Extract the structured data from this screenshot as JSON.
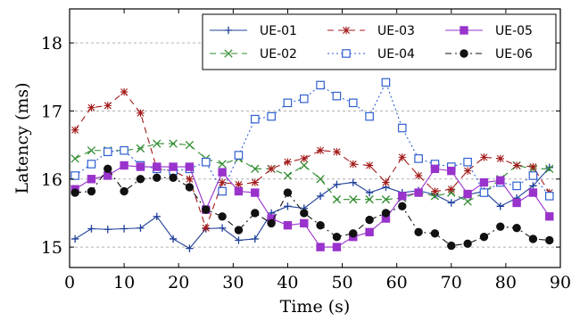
{
  "chart_data": {
    "type": "line",
    "title": "",
    "xlabel": "Time (s)",
    "ylabel": "Latency (ms)",
    "xlim": [
      0,
      90
    ],
    "ylim": [
      14.7,
      18.5
    ],
    "xticks": [
      0,
      10,
      20,
      30,
      40,
      50,
      60,
      70,
      80,
      90
    ],
    "yticks": [
      15,
      16,
      17,
      18
    ],
    "grid": "horizontal dotted at y ticks",
    "legend_placement": "top-right",
    "x": [
      1,
      4,
      7,
      10,
      13,
      16,
      19,
      22,
      25,
      28,
      31,
      34,
      37,
      40,
      43,
      46,
      49,
      52,
      55,
      58,
      61,
      64,
      67,
      70,
      73,
      76,
      79,
      82,
      85,
      88
    ],
    "series": [
      {
        "name": "UE-01",
        "color": "#1f3f99",
        "dash": "",
        "marker": "plus",
        "values": [
          15.12,
          15.27,
          15.26,
          15.27,
          15.28,
          15.45,
          15.12,
          14.98,
          15.27,
          15.28,
          15.1,
          15.12,
          15.5,
          15.6,
          15.57,
          15.75,
          15.92,
          15.95,
          15.8,
          15.88,
          15.8,
          15.83,
          15.77,
          15.65,
          15.77,
          15.82,
          15.6,
          15.72,
          15.9,
          16.17
        ]
      },
      {
        "name": "UE-02",
        "color": "#2e8b2e",
        "dash": "7,5",
        "marker": "x",
        "values": [
          16.3,
          16.42,
          16.42,
          16.42,
          16.45,
          16.52,
          16.52,
          16.5,
          16.3,
          16.22,
          16.3,
          16.15,
          16.15,
          16.05,
          16.2,
          16.0,
          15.7,
          15.7,
          15.7,
          15.7,
          15.72,
          15.8,
          15.75,
          15.8,
          15.67,
          15.8,
          16.0,
          16.2,
          16.15,
          16.15
        ]
      },
      {
        "name": "UE-03",
        "color": "#a31a1a",
        "dash": "7,5",
        "marker": "star",
        "values": [
          16.72,
          17.05,
          17.08,
          17.28,
          16.97,
          16.15,
          16.12,
          16.0,
          15.28,
          15.95,
          15.92,
          15.95,
          16.15,
          16.25,
          16.3,
          16.42,
          16.4,
          16.22,
          16.2,
          15.95,
          16.32,
          16.05,
          15.82,
          15.85,
          16.12,
          16.32,
          16.3,
          16.2,
          16.18,
          15.8
        ]
      },
      {
        "name": "UE-04",
        "color": "#2f5fd0",
        "dash": "2,3",
        "marker": "square-open",
        "values": [
          16.05,
          16.22,
          16.4,
          16.42,
          16.2,
          16.15,
          16.12,
          16.15,
          16.25,
          15.82,
          16.35,
          16.88,
          16.92,
          17.12,
          17.18,
          17.38,
          17.22,
          17.12,
          16.92,
          17.42,
          16.75,
          16.3,
          16.22,
          16.18,
          16.25,
          15.8,
          15.95,
          15.9,
          16.05,
          15.75
        ]
      },
      {
        "name": "UE-05",
        "color": "#9933cc",
        "dash": "",
        "marker": "square-filled",
        "values": [
          15.85,
          16.0,
          16.05,
          16.2,
          16.18,
          16.18,
          16.18,
          16.18,
          15.55,
          16.1,
          15.82,
          15.8,
          15.42,
          15.32,
          15.35,
          15.0,
          15.0,
          15.15,
          15.22,
          15.42,
          15.75,
          15.8,
          16.15,
          16.12,
          15.78,
          15.95,
          15.98,
          15.65,
          15.8,
          15.45
        ]
      },
      {
        "name": "UE-06",
        "color": "#111111",
        "dash": "7,4,2,4",
        "marker": "circle-filled",
        "values": [
          15.8,
          15.82,
          16.15,
          15.82,
          16.0,
          16.02,
          16.02,
          15.88,
          15.55,
          15.45,
          15.25,
          15.5,
          15.35,
          15.8,
          15.5,
          15.32,
          15.15,
          15.2,
          15.4,
          15.5,
          15.6,
          15.22,
          15.2,
          15.02,
          15.05,
          15.15,
          15.3,
          15.28,
          15.12,
          15.1
        ]
      }
    ]
  }
}
